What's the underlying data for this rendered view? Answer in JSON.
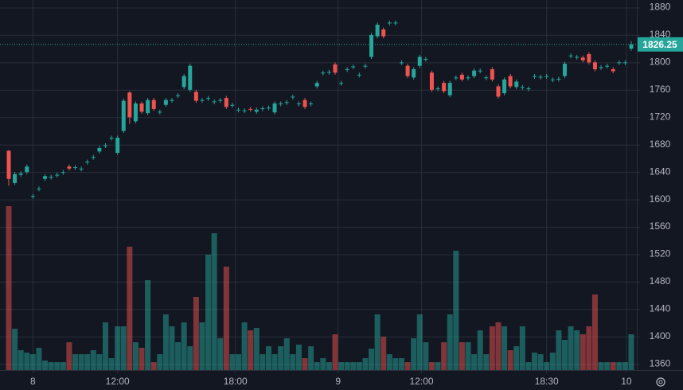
{
  "chart_data": {
    "type": "candlestick",
    "up_color": "#26a69a",
    "down_color": "#ef5350",
    "grid": true,
    "ylim": [
      1351,
      1891
    ],
    "yticks": [
      1360,
      1400,
      1440,
      1480,
      1520,
      1560,
      1600,
      1640,
      1680,
      1720,
      1760,
      1800,
      1840,
      1880
    ],
    "xlim": [
      -0.5,
      103.8
    ],
    "xticks": [
      {
        "value": 4,
        "label": "8"
      },
      {
        "value": 18,
        "label": "12:00"
      },
      {
        "value": 37.5,
        "label": "18:00"
      },
      {
        "value": 54.5,
        "label": "9"
      },
      {
        "value": 68.3,
        "label": "12:00"
      },
      {
        "value": 89,
        "label": "18:30"
      },
      {
        "value": 102.2,
        "label": "10"
      }
    ],
    "last_price": 1826.25,
    "open": [
      1671,
      1624,
      1636,
      1640,
      1604,
      1615,
      1630,
      1632,
      1635,
      1639,
      1648,
      1646,
      1644,
      1654,
      1661,
      1670,
      1678,
      1689,
      1668,
      1700,
      1756,
      1714,
      1740,
      1726,
      1745,
      1727,
      1738,
      1744,
      1751,
      1764,
      1760,
      1757,
      1744,
      1747,
      1742,
      1744,
      1748,
      1737,
      1730,
      1729,
      1732,
      1728,
      1732,
      1733,
      1727,
      1739,
      1741,
      1749,
      1739,
      1745,
      1739,
      1765,
      1784,
      1785,
      1797,
      1769,
      1789,
      1793,
      1781,
      1794,
      1808,
      1838,
      1848,
      1857,
      1857,
      1799,
      1795,
      1778,
      1795,
      1804,
      1785,
      1761,
      1770,
      1752,
      1777,
      1782,
      1777,
      1780,
      1787,
      1777,
      1790,
      1765,
      1755,
      1780,
      1764,
      1763,
      1761,
      1779,
      1778,
      1779,
      1774,
      1775,
      1780,
      1809,
      1807,
      1807,
      1812,
      1800,
      1792,
      1794,
      1790,
      1799,
      1799,
      1820
    ],
    "high": [
      1672,
      1640,
      1641,
      1651,
      1608,
      1619,
      1637,
      1636,
      1639,
      1643,
      1651,
      1650,
      1648,
      1658,
      1665,
      1678,
      1682,
      1693,
      1693,
      1747,
      1758,
      1743,
      1743,
      1748,
      1748,
      1731,
      1748,
      1748,
      1755,
      1783,
      1798,
      1760,
      1748,
      1751,
      1746,
      1748,
      1751,
      1741,
      1734,
      1733,
      1735,
      1734,
      1736,
      1737,
      1743,
      1743,
      1745,
      1753,
      1743,
      1748,
      1743,
      1773,
      1788,
      1789,
      1800,
      1773,
      1793,
      1797,
      1785,
      1798,
      1843,
      1858,
      1851,
      1861,
      1861,
      1803,
      1798,
      1793,
      1811,
      1808,
      1788,
      1765,
      1773,
      1773,
      1781,
      1785,
      1781,
      1791,
      1791,
      1781,
      1793,
      1768,
      1778,
      1783,
      1775,
      1767,
      1765,
      1783,
      1782,
      1783,
      1778,
      1779,
      1801,
      1813,
      1811,
      1810,
      1815,
      1803,
      1796,
      1798,
      1793,
      1803,
      1803,
      1831
    ],
    "low": [
      1620,
      1621,
      1633,
      1637,
      1601,
      1612,
      1627,
      1629,
      1632,
      1636,
      1642,
      1643,
      1641,
      1651,
      1658,
      1667,
      1675,
      1686,
      1665,
      1697,
      1710,
      1711,
      1725,
      1723,
      1729,
      1724,
      1735,
      1741,
      1748,
      1761,
      1757,
      1741,
      1741,
      1744,
      1739,
      1741,
      1732,
      1734,
      1727,
      1726,
      1728,
      1725,
      1729,
      1730,
      1724,
      1736,
      1738,
      1746,
      1736,
      1732,
      1736,
      1762,
      1781,
      1782,
      1782,
      1766,
      1786,
      1790,
      1778,
      1791,
      1805,
      1835,
      1835,
      1854,
      1854,
      1796,
      1777,
      1775,
      1792,
      1801,
      1757,
      1758,
      1755,
      1749,
      1774,
      1772,
      1774,
      1777,
      1784,
      1774,
      1772,
      1747,
      1752,
      1762,
      1761,
      1760,
      1758,
      1776,
      1775,
      1776,
      1771,
      1772,
      1777,
      1806,
      1804,
      1800,
      1797,
      1787,
      1789,
      1791,
      1784,
      1796,
      1796,
      1817
    ],
    "close": [
      1630,
      1637,
      1638,
      1648,
      1605,
      1616,
      1634,
      1633,
      1636,
      1640,
      1645,
      1647,
      1645,
      1655,
      1662,
      1675,
      1679,
      1690,
      1690,
      1744,
      1720,
      1740,
      1728,
      1745,
      1732,
      1728,
      1745,
      1745,
      1752,
      1780,
      1795,
      1744,
      1745,
      1748,
      1743,
      1745,
      1735,
      1738,
      1731,
      1730,
      1731,
      1731,
      1733,
      1734,
      1740,
      1740,
      1742,
      1750,
      1740,
      1735,
      1740,
      1770,
      1785,
      1786,
      1785,
      1770,
      1790,
      1794,
      1782,
      1795,
      1840,
      1855,
      1838,
      1858,
      1858,
      1800,
      1780,
      1790,
      1808,
      1805,
      1760,
      1762,
      1758,
      1770,
      1778,
      1775,
      1778,
      1788,
      1788,
      1778,
      1775,
      1750,
      1775,
      1765,
      1772,
      1764,
      1762,
      1780,
      1779,
      1780,
      1775,
      1776,
      1798,
      1810,
      1808,
      1803,
      1800,
      1790,
      1793,
      1795,
      1787,
      1800,
      1800,
      1826.25
    ],
    "volume_lim": [
      0,
      210
    ],
    "volume": [
      206,
      52,
      25,
      22,
      20,
      28,
      12,
      10,
      10,
      10,
      35,
      20,
      20,
      20,
      25,
      20,
      60,
      15,
      55,
      55,
      155,
      35,
      28,
      113,
      10,
      20,
      70,
      55,
      35,
      60,
      30,
      92,
      60,
      145,
      172,
      40,
      130,
      20,
      20,
      60,
      50,
      53,
      20,
      30,
      20,
      30,
      40,
      20,
      32,
      15,
      30,
      10,
      15,
      10,
      45,
      10,
      10,
      10,
      10,
      15,
      27,
      70,
      42,
      20,
      15,
      15,
      10,
      40,
      70,
      35,
      10,
      10,
      35,
      70,
      150,
      35,
      35,
      20,
      50,
      20,
      55,
      60,
      55,
      25,
      30,
      55,
      10,
      22,
      20,
      10,
      22,
      50,
      38,
      55,
      50,
      45,
      55,
      95,
      10,
      10,
      10,
      10,
      10,
      45
    ]
  }
}
